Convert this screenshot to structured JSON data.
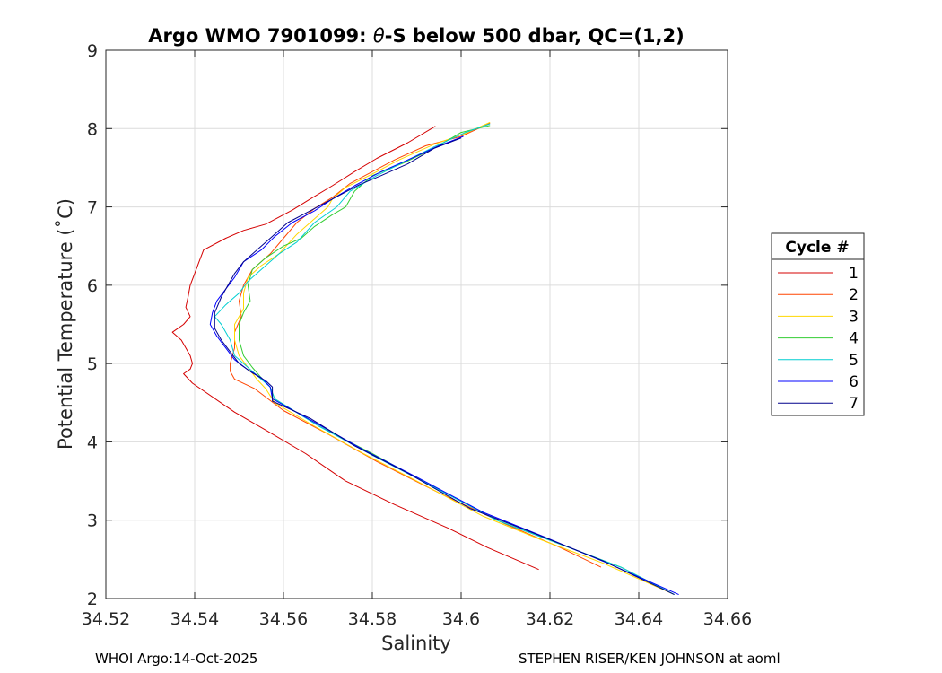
{
  "chart_data": {
    "type": "line",
    "title_prefix": "Argo WMO 7901099: ",
    "title_symbol": "θ",
    "title_suffix": "-S below 500 dbar,  QC=(1,2)",
    "xlabel": "Salinity",
    "ylabel": "Potential Temperature (˚C)",
    "xlim": [
      34.52,
      34.66
    ],
    "ylim": [
      2,
      9
    ],
    "xticks": [
      34.52,
      34.54,
      34.56,
      34.58,
      34.6,
      34.62,
      34.64,
      34.66
    ],
    "xtick_labels": [
      "34.52",
      "34.54",
      "34.56",
      "34.58",
      "34.6",
      "34.62",
      "34.64",
      "34.66"
    ],
    "yticks": [
      2,
      3,
      4,
      5,
      6,
      7,
      8,
      9
    ],
    "ytick_labels": [
      "2",
      "3",
      "4",
      "5",
      "6",
      "7",
      "8",
      "9"
    ],
    "grid": true,
    "legend": {
      "title": "Cycle #",
      "placement": "outside-right"
    },
    "series": [
      {
        "name": "1",
        "color": "#d40000",
        "points": [
          [
            34.5942,
            8.03
          ],
          [
            34.588,
            7.82
          ],
          [
            34.581,
            7.62
          ],
          [
            34.576,
            7.45
          ],
          [
            34.571,
            7.27
          ],
          [
            34.566,
            7.1
          ],
          [
            34.562,
            6.96
          ],
          [
            34.556,
            6.78
          ],
          [
            34.551,
            6.7
          ],
          [
            34.547,
            6.6
          ],
          [
            34.542,
            6.45
          ],
          [
            34.541,
            6.3
          ],
          [
            34.54,
            6.15
          ],
          [
            34.539,
            6.0
          ],
          [
            34.5385,
            5.85
          ],
          [
            34.538,
            5.72
          ],
          [
            34.539,
            5.6
          ],
          [
            34.5375,
            5.5
          ],
          [
            34.536,
            5.44
          ],
          [
            34.535,
            5.4
          ],
          [
            34.537,
            5.3
          ],
          [
            34.538,
            5.2
          ],
          [
            34.539,
            5.1
          ],
          [
            34.5395,
            5.0
          ],
          [
            34.539,
            4.93
          ],
          [
            34.5375,
            4.87
          ],
          [
            34.5395,
            4.75
          ],
          [
            34.549,
            4.38
          ],
          [
            34.556,
            4.15
          ],
          [
            34.565,
            3.85
          ],
          [
            34.574,
            3.5
          ],
          [
            34.585,
            3.2
          ],
          [
            34.597,
            2.9
          ],
          [
            34.606,
            2.65
          ],
          [
            34.6175,
            2.37
          ]
        ]
      },
      {
        "name": "2",
        "color": "#ff4500",
        "points": [
          [
            34.6065,
            8.07
          ],
          [
            34.6,
            7.9
          ],
          [
            34.592,
            7.78
          ],
          [
            34.585,
            7.6
          ],
          [
            34.58,
            7.45
          ],
          [
            34.575,
            7.3
          ],
          [
            34.571,
            7.12
          ],
          [
            34.567,
            6.98
          ],
          [
            34.563,
            6.8
          ],
          [
            34.56,
            6.6
          ],
          [
            34.557,
            6.4
          ],
          [
            34.553,
            6.2
          ],
          [
            34.551,
            6.0
          ],
          [
            34.55,
            5.8
          ],
          [
            34.5505,
            5.6
          ],
          [
            34.549,
            5.4
          ],
          [
            34.549,
            5.2
          ],
          [
            34.548,
            5.0
          ],
          [
            34.548,
            4.9
          ],
          [
            34.549,
            4.8
          ],
          [
            34.5535,
            4.68
          ],
          [
            34.56,
            4.4
          ],
          [
            34.57,
            4.1
          ],
          [
            34.581,
            3.75
          ],
          [
            34.595,
            3.35
          ],
          [
            34.61,
            2.95
          ],
          [
            34.622,
            2.66
          ],
          [
            34.6315,
            2.4
          ]
        ]
      },
      {
        "name": "3",
        "color": "#ffd700",
        "points": [
          [
            34.6065,
            8.08
          ],
          [
            34.601,
            7.94
          ],
          [
            34.594,
            7.8
          ],
          [
            34.586,
            7.6
          ],
          [
            34.58,
            7.42
          ],
          [
            34.574,
            7.25
          ],
          [
            34.571,
            7.1
          ],
          [
            34.57,
            7.0
          ],
          [
            34.567,
            6.85
          ],
          [
            34.563,
            6.65
          ],
          [
            34.559,
            6.4
          ],
          [
            34.555,
            6.25
          ],
          [
            34.552,
            6.1
          ],
          [
            34.551,
            5.9
          ],
          [
            34.551,
            5.7
          ],
          [
            34.549,
            5.5
          ],
          [
            34.549,
            5.3
          ],
          [
            34.55,
            5.1
          ],
          [
            34.552,
            4.95
          ],
          [
            34.554,
            4.8
          ],
          [
            34.556,
            4.68
          ],
          [
            34.558,
            4.5
          ],
          [
            34.567,
            4.2
          ],
          [
            34.578,
            3.85
          ],
          [
            34.59,
            3.5
          ],
          [
            34.605,
            3.05
          ],
          [
            34.618,
            2.75
          ],
          [
            34.632,
            2.45
          ],
          [
            34.648,
            2.05
          ]
        ]
      },
      {
        "name": "4",
        "color": "#32cd32",
        "points": [
          [
            34.6065,
            8.04
          ],
          [
            34.6,
            7.95
          ],
          [
            34.594,
            7.75
          ],
          [
            34.587,
            7.56
          ],
          [
            34.58,
            7.4
          ],
          [
            34.576,
            7.2
          ],
          [
            34.574,
            7.0
          ],
          [
            34.571,
            6.9
          ],
          [
            34.567,
            6.75
          ],
          [
            34.564,
            6.6
          ],
          [
            34.56,
            6.5
          ],
          [
            34.556,
            6.35
          ],
          [
            34.553,
            6.2
          ],
          [
            34.552,
            6.0
          ],
          [
            34.5525,
            5.8
          ],
          [
            34.551,
            5.65
          ],
          [
            34.55,
            5.5
          ],
          [
            34.55,
            5.3
          ],
          [
            34.551,
            5.1
          ],
          [
            34.553,
            4.95
          ],
          [
            34.555,
            4.82
          ],
          [
            34.557,
            4.7
          ],
          [
            34.558,
            4.55
          ],
          [
            34.568,
            4.2
          ],
          [
            34.58,
            3.85
          ],
          [
            34.593,
            3.45
          ],
          [
            34.608,
            3.0
          ],
          [
            34.622,
            2.7
          ],
          [
            34.636,
            2.4
          ],
          [
            34.648,
            2.05
          ]
        ]
      },
      {
        "name": "5",
        "color": "#00ced1",
        "points": [
          [
            34.6065,
            8.06
          ],
          [
            34.601,
            7.95
          ],
          [
            34.594,
            7.77
          ],
          [
            34.587,
            7.57
          ],
          [
            34.581,
            7.4
          ],
          [
            34.575,
            7.2
          ],
          [
            34.572,
            7.0
          ],
          [
            34.567,
            6.8
          ],
          [
            34.563,
            6.55
          ],
          [
            34.559,
            6.4
          ],
          [
            34.555,
            6.2
          ],
          [
            34.552,
            6.05
          ],
          [
            34.55,
            5.9
          ],
          [
            34.547,
            5.75
          ],
          [
            34.5445,
            5.6
          ],
          [
            34.546,
            5.5
          ],
          [
            34.548,
            5.3
          ],
          [
            34.549,
            5.1
          ],
          [
            34.552,
            4.95
          ],
          [
            34.555,
            4.8
          ],
          [
            34.557,
            4.7
          ],
          [
            34.558,
            4.55
          ],
          [
            34.568,
            4.2
          ],
          [
            34.58,
            3.83
          ],
          [
            34.594,
            3.42
          ],
          [
            34.608,
            3.0
          ],
          [
            34.623,
            2.68
          ],
          [
            34.636,
            2.4
          ],
          [
            34.648,
            2.05
          ]
        ]
      },
      {
        "name": "6",
        "color": "#0000ff",
        "points": [
          [
            34.6005,
            7.9
          ],
          [
            34.595,
            7.78
          ],
          [
            34.588,
            7.6
          ],
          [
            34.582,
            7.45
          ],
          [
            34.576,
            7.27
          ],
          [
            34.571,
            7.1
          ],
          [
            34.567,
            6.95
          ],
          [
            34.562,
            6.8
          ],
          [
            34.558,
            6.62
          ],
          [
            34.555,
            6.45
          ],
          [
            34.551,
            6.3
          ],
          [
            34.549,
            6.1
          ],
          [
            34.547,
            5.95
          ],
          [
            34.545,
            5.8
          ],
          [
            34.544,
            5.65
          ],
          [
            34.5435,
            5.5
          ],
          [
            34.545,
            5.35
          ],
          [
            34.547,
            5.2
          ],
          [
            34.549,
            5.05
          ],
          [
            34.552,
            4.92
          ],
          [
            34.555,
            4.82
          ],
          [
            34.557,
            4.7
          ],
          [
            34.5575,
            4.55
          ],
          [
            34.567,
            4.25
          ],
          [
            34.578,
            3.9
          ],
          [
            34.59,
            3.55
          ],
          [
            34.605,
            3.1
          ],
          [
            34.619,
            2.78
          ],
          [
            34.633,
            2.45
          ],
          [
            34.649,
            2.05
          ]
        ]
      },
      {
        "name": "7",
        "color": "#00008b",
        "points": [
          [
            34.6,
            7.88
          ],
          [
            34.594,
            7.75
          ],
          [
            34.588,
            7.55
          ],
          [
            34.582,
            7.4
          ],
          [
            34.577,
            7.28
          ],
          [
            34.571,
            7.1
          ],
          [
            34.566,
            6.95
          ],
          [
            34.561,
            6.8
          ],
          [
            34.557,
            6.6
          ],
          [
            34.554,
            6.45
          ],
          [
            34.551,
            6.3
          ],
          [
            34.549,
            6.15
          ],
          [
            34.5475,
            6.0
          ],
          [
            34.546,
            5.85
          ],
          [
            34.5445,
            5.65
          ],
          [
            34.5445,
            5.45
          ],
          [
            34.546,
            5.3
          ],
          [
            34.548,
            5.15
          ],
          [
            34.55,
            5.0
          ],
          [
            34.553,
            4.88
          ],
          [
            34.556,
            4.78
          ],
          [
            34.5575,
            4.7
          ],
          [
            34.5575,
            4.52
          ],
          [
            34.566,
            4.3
          ],
          [
            34.576,
            3.95
          ],
          [
            34.588,
            3.6
          ],
          [
            34.602,
            3.15
          ],
          [
            34.617,
            2.82
          ],
          [
            34.632,
            2.48
          ],
          [
            34.648,
            2.05
          ]
        ]
      }
    ]
  },
  "footer": {
    "left": "WHOI Argo:14-Oct-2025",
    "right": "STEPHEN RISER/KEN JOHNSON at aoml"
  }
}
